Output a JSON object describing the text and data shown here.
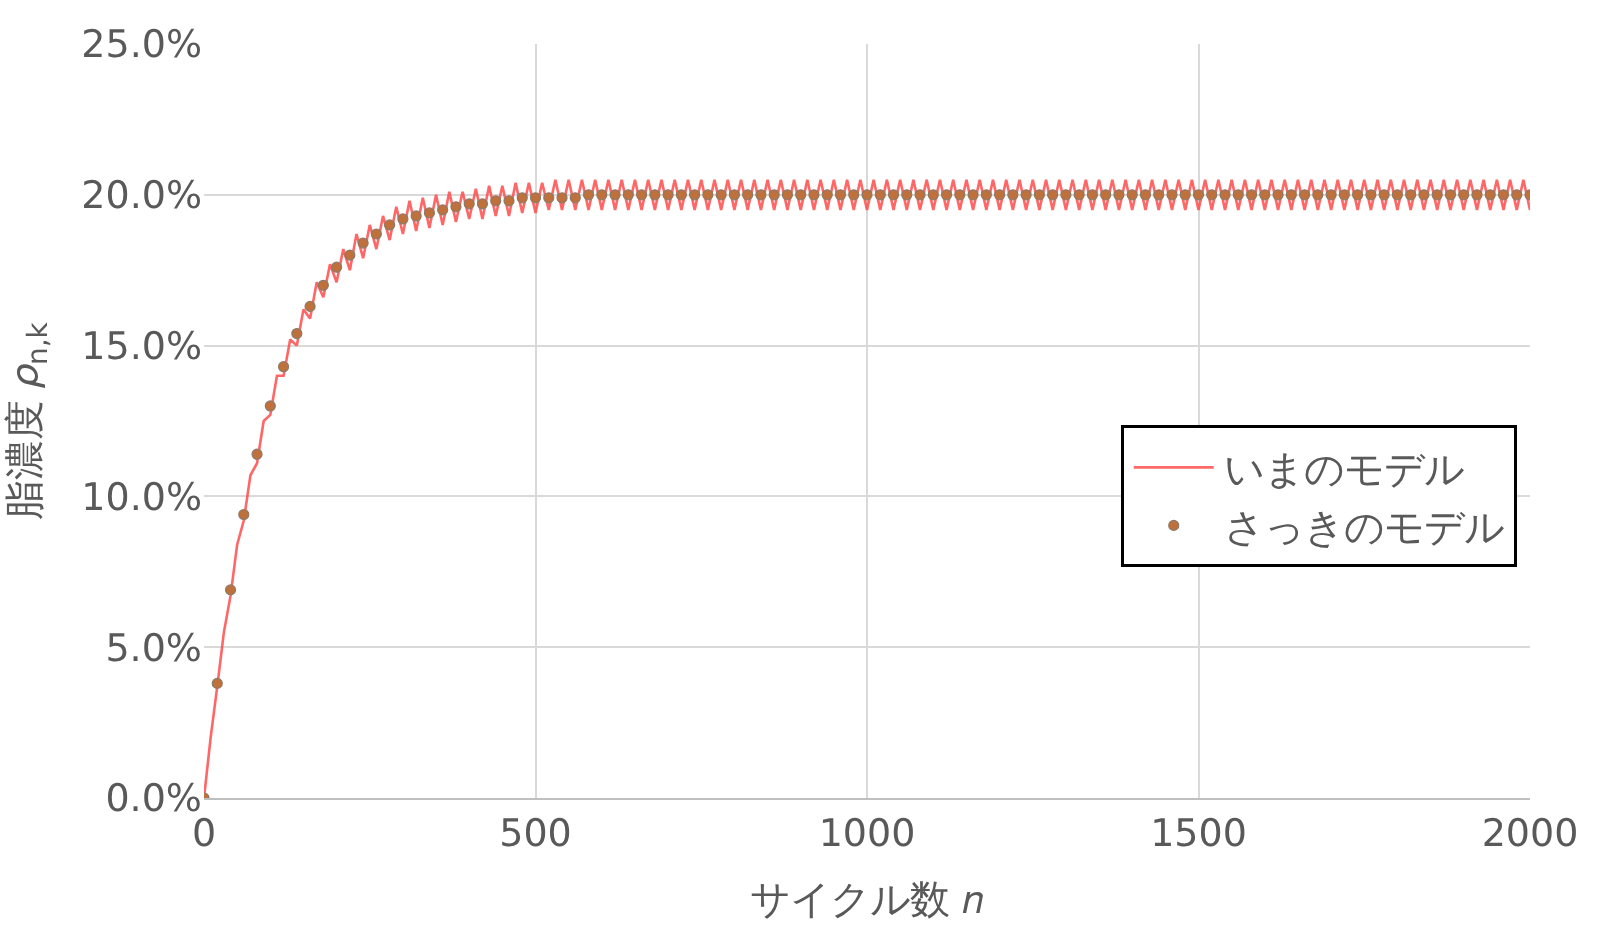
{
  "chart_data": {
    "type": "line",
    "xlabel": "サイクル数 𝑛",
    "ylabel": "脂濃度 𝜌$_{n,k}$",
    "xlim": [
      0,
      2000
    ],
    "xticks": [
      0,
      500,
      1000,
      1500,
      2000
    ],
    "ylim": [
      0,
      25
    ],
    "yticks": [
      {
        "value": 0,
        "label": "0.0%"
      },
      {
        "value": 5,
        "label": "5.0%"
      },
      {
        "value": 10,
        "label": "10.0%"
      },
      {
        "value": 15,
        "label": "15.0%"
      },
      {
        "value": 20,
        "label": "20.0%"
      },
      {
        "value": 25,
        "label": "25.0%"
      }
    ],
    "grid": true,
    "legend": "right",
    "series": [
      {
        "name": "いまのモデル",
        "color": "#ff4d4d",
        "marker": "none",
        "line_style": "solid",
        "x": [
          0,
          10,
          20,
          30,
          40,
          50,
          60,
          70,
          80,
          90,
          100,
          110,
          120,
          130,
          140,
          150,
          160,
          170,
          180,
          190,
          200,
          210,
          220,
          230,
          240,
          250,
          260,
          270,
          280,
          290,
          300,
          310,
          320,
          330,
          340,
          350,
          360,
          370,
          380,
          390,
          400,
          410,
          420,
          430,
          440,
          450,
          460,
          470,
          480,
          490,
          500,
          510,
          520,
          530,
          540,
          550,
          560,
          570,
          580,
          590,
          600,
          610,
          620,
          630,
          640,
          650,
          660,
          670,
          680,
          690,
          700,
          710,
          720,
          730,
          740,
          750,
          760,
          770,
          780,
          790,
          800,
          810,
          820,
          830,
          840,
          850,
          860,
          870,
          880,
          890,
          900,
          910,
          920,
          930,
          940,
          950,
          960,
          970,
          980,
          990,
          1000,
          1010,
          1020,
          1030,
          1040,
          1050,
          1060,
          1070,
          1080,
          1090,
          1100,
          1110,
          1120,
          1130,
          1140,
          1150,
          1160,
          1170,
          1180,
          1190,
          1200,
          1210,
          1220,
          1230,
          1240,
          1250,
          1260,
          1270,
          1280,
          1290,
          1300,
          1310,
          1320,
          1330,
          1340,
          1350,
          1360,
          1370,
          1380,
          1390,
          1400,
          1410,
          1420,
          1430,
          1440,
          1450,
          1460,
          1470,
          1480,
          1490,
          1500,
          1510,
          1520,
          1530,
          1540,
          1550,
          1560,
          1570,
          1580,
          1590,
          1600,
          1610,
          1620,
          1630,
          1640,
          1650,
          1660,
          1670,
          1680,
          1690,
          1700,
          1710,
          1720,
          1730,
          1740,
          1750,
          1760,
          1770,
          1780,
          1790,
          1800,
          1810,
          1820,
          1830,
          1840,
          1850,
          1860,
          1870,
          1880,
          1890,
          1900,
          1910,
          1920,
          1930,
          1940,
          1950,
          1960,
          1970,
          1980,
          1990,
          2000
        ],
        "values": [
          0,
          2.0,
          3.7,
          5.5,
          6.7,
          8.4,
          9.2,
          10.7,
          11.1,
          12.5,
          12.7,
          14.0,
          14.0,
          15.2,
          15.0,
          16.2,
          15.9,
          17.1,
          16.6,
          17.7,
          17.1,
          18.2,
          17.5,
          18.7,
          17.9,
          19.0,
          18.2,
          19.3,
          18.5,
          19.6,
          18.7,
          19.8,
          18.8,
          19.9,
          18.9,
          20.0,
          19.0,
          20.1,
          19.1,
          20.1,
          19.2,
          20.2,
          19.2,
          20.3,
          19.3,
          20.3,
          19.3,
          20.4,
          19.4,
          20.4,
          19.4,
          20.4,
          19.5,
          20.5,
          19.5,
          20.5,
          19.5,
          20.5,
          19.5,
          20.5,
          19.5,
          20.5,
          19.5,
          20.5,
          19.5,
          20.5,
          19.5,
          20.5,
          19.5,
          20.5,
          19.5,
          20.5,
          19.5,
          20.5,
          19.5,
          20.5,
          19.5,
          20.5,
          19.5,
          20.5,
          19.5,
          20.5,
          19.5,
          20.5,
          19.5,
          20.5,
          19.5,
          20.5,
          19.5,
          20.5,
          19.5,
          20.5,
          19.5,
          20.5,
          19.5,
          20.5,
          19.5,
          20.5,
          19.5,
          20.5,
          19.5,
          20.5,
          19.5,
          20.5,
          19.5,
          20.5,
          19.5,
          20.5,
          19.5,
          20.5,
          19.5,
          20.5,
          19.5,
          20.5,
          19.5,
          20.5,
          19.5,
          20.5,
          19.5,
          20.5,
          19.5,
          20.5,
          19.5,
          20.5,
          19.5,
          20.5,
          19.5,
          20.5,
          19.5,
          20.5,
          19.5,
          20.5,
          19.5,
          20.5,
          19.5,
          20.5,
          19.5,
          20.5,
          19.5,
          20.5,
          19.5,
          20.5,
          19.5,
          20.5,
          19.5,
          20.5,
          19.5,
          20.5,
          19.5,
          20.5,
          19.5,
          20.5,
          19.5,
          20.5,
          19.5,
          20.5,
          19.5,
          20.5,
          19.5,
          20.5,
          19.5,
          20.5,
          19.5,
          20.5,
          19.5,
          20.5,
          19.5,
          20.5,
          19.5,
          20.5,
          19.5,
          20.5,
          19.5,
          20.5,
          19.5,
          20.5,
          19.5,
          20.5,
          19.5,
          20.5,
          19.5,
          20.5,
          19.5,
          20.5,
          19.5,
          20.5,
          19.5,
          20.5,
          19.5,
          20.5,
          19.5,
          20.5,
          19.5,
          20.5,
          19.5,
          20.5,
          19.5,
          20.5,
          19.5,
          20.5,
          19.5
        ]
      },
      {
        "name": "さっきのモデル",
        "type": "scatter",
        "color": "#c0703a",
        "marker": "circle",
        "x": [
          0,
          20,
          40,
          60,
          80,
          100,
          120,
          140,
          160,
          180,
          200,
          220,
          240,
          260,
          280,
          300,
          320,
          340,
          360,
          380,
          400,
          420,
          440,
          460,
          480,
          500,
          520,
          540,
          560,
          580,
          600,
          620,
          640,
          660,
          680,
          700,
          720,
          740,
          760,
          780,
          800,
          820,
          840,
          860,
          880,
          900,
          920,
          940,
          960,
          980,
          1000,
          1020,
          1040,
          1060,
          1080,
          1100,
          1120,
          1140,
          1160,
          1180,
          1200,
          1220,
          1240,
          1260,
          1280,
          1300,
          1320,
          1340,
          1360,
          1380,
          1400,
          1420,
          1440,
          1460,
          1480,
          1500,
          1520,
          1540,
          1560,
          1580,
          1600,
          1620,
          1640,
          1660,
          1680,
          1700,
          1720,
          1740,
          1760,
          1780,
          1800,
          1820,
          1840,
          1860,
          1880,
          1900,
          1920,
          1940,
          1960,
          1980,
          2000
        ],
        "values": [
          0,
          3.8,
          6.9,
          9.4,
          11.4,
          13.0,
          14.3,
          15.4,
          16.3,
          17.0,
          17.6,
          18.0,
          18.4,
          18.7,
          19.0,
          19.2,
          19.3,
          19.4,
          19.5,
          19.6,
          19.7,
          19.7,
          19.8,
          19.8,
          19.9,
          19.9,
          19.9,
          19.9,
          19.9,
          20.0,
          20.0,
          20.0,
          20.0,
          20.0,
          20.0,
          20.0,
          20.0,
          20.0,
          20.0,
          20.0,
          20.0,
          20.0,
          20.0,
          20.0,
          20.0,
          20.0,
          20.0,
          20.0,
          20.0,
          20.0,
          20.0,
          20.0,
          20.0,
          20.0,
          20.0,
          20.0,
          20.0,
          20.0,
          20.0,
          20.0,
          20.0,
          20.0,
          20.0,
          20.0,
          20.0,
          20.0,
          20.0,
          20.0,
          20.0,
          20.0,
          20.0,
          20.0,
          20.0,
          20.0,
          20.0,
          20.0,
          20.0,
          20.0,
          20.0,
          20.0,
          20.0,
          20.0,
          20.0,
          20.0,
          20.0,
          20.0,
          20.0,
          20.0,
          20.0,
          20.0,
          20.0,
          20.0,
          20.0,
          20.0,
          20.0,
          20.0,
          20.0,
          20.0,
          20.0,
          20.0,
          20.0
        ]
      }
    ]
  }
}
